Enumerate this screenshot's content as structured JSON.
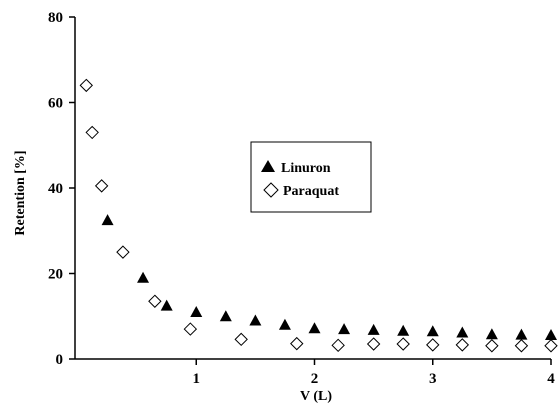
{
  "chart_data": {
    "type": "scatter",
    "title": "",
    "xlabel": "V (L)",
    "ylabel": "Retention [%]",
    "xlim": [
      0,
      4
    ],
    "ylim": [
      0,
      80
    ],
    "x_ticks": [
      1,
      2,
      3,
      4
    ],
    "y_ticks": [
      0,
      20,
      40,
      60,
      80
    ],
    "x_tick_labels": [
      "1",
      "2",
      "3",
      "4"
    ],
    "y_tick_labels": [
      "0",
      "20",
      "40",
      "60",
      "80"
    ],
    "grid": false,
    "legend_position": "center",
    "series": [
      {
        "name": "Linuron",
        "marker": "filled-triangle",
        "color": "#000000",
        "x": [
          0.25,
          0.55,
          0.75,
          1.0,
          1.25,
          1.5,
          1.75,
          2.0,
          2.25,
          2.5,
          2.75,
          3.0,
          3.25,
          3.5,
          3.75,
          4.0
        ],
        "y": [
          32.5,
          19.0,
          12.5,
          11.0,
          10.0,
          9.0,
          8.0,
          7.2,
          7.0,
          6.8,
          6.6,
          6.5,
          6.2,
          5.8,
          5.7,
          5.6
        ]
      },
      {
        "name": "Paraquat",
        "marker": "open-diamond",
        "color": "#000000",
        "x": [
          0.07,
          0.12,
          0.2,
          0.38,
          0.65,
          0.95,
          1.38,
          1.85,
          2.2,
          2.5,
          2.75,
          3.0,
          3.25,
          3.5,
          3.75,
          4.0
        ],
        "y": [
          64.0,
          53.0,
          40.5,
          25.0,
          13.5,
          7.0,
          4.6,
          3.6,
          3.2,
          3.5,
          3.5,
          3.3,
          3.3,
          3.1,
          3.1,
          3.1
        ]
      }
    ]
  }
}
